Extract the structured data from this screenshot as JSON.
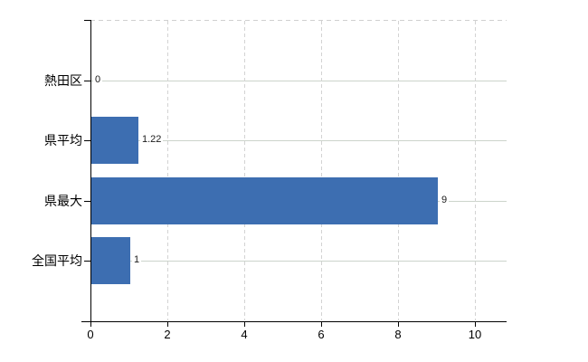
{
  "chart_data": {
    "type": "bar",
    "orientation": "horizontal",
    "title": "",
    "xlabel": "",
    "ylabel": "",
    "categories": [
      "熱田区",
      "県平均",
      "県最大",
      "全国平均"
    ],
    "values": [
      0,
      1.22,
      9,
      1
    ],
    "value_labels": [
      "0",
      "1.22",
      "9",
      "1"
    ],
    "x_tick_labels": [
      "0",
      "2",
      "4",
      "6",
      "8",
      "10"
    ],
    "x_tick_values": [
      0,
      2,
      4,
      6,
      8,
      10
    ],
    "xlim": [
      0,
      10.8
    ],
    "grid": "on",
    "legend_position": "none",
    "bar_color": "#3d6eb1",
    "axis_color": "#000000",
    "h_grid_color": "#ccd4cb",
    "v_grid_color": "#d3d3d3",
    "top_border_color": "#d0d0d0",
    "label_color": "#000000",
    "value_label_color": "#1a1a1a",
    "background_color": "#ffffff"
  }
}
